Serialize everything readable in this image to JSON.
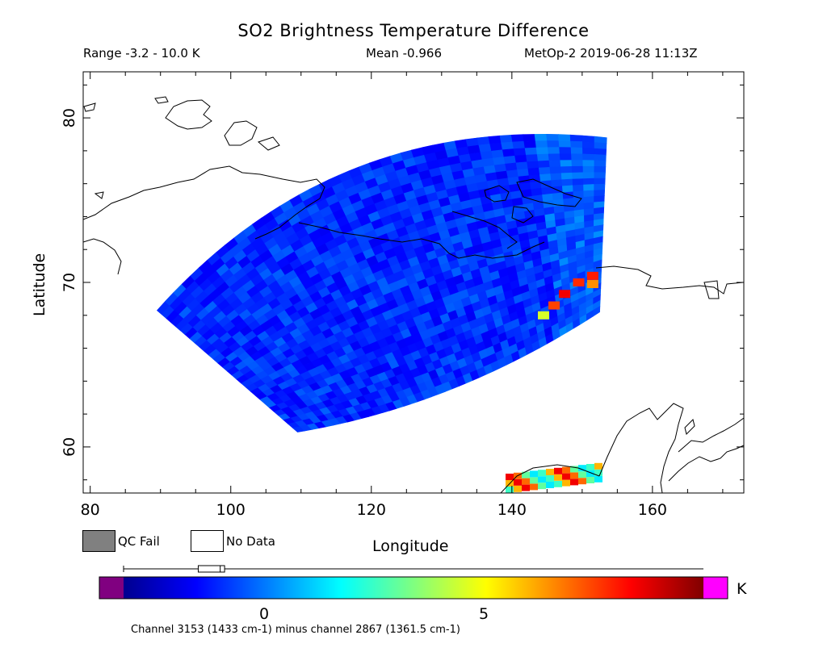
{
  "header": {
    "title": "SO2 Brightness Temperature Difference",
    "range": "Range -3.2 - 10.0 K",
    "mean": "Mean -0.966",
    "satellite": "MetOp-2 2019-06-28 11:13Z"
  },
  "axes": {
    "xlabel": "Longitude",
    "ylabel": "Latitude",
    "xlim": [
      79,
      173
    ],
    "ylim": [
      57.2,
      82.8
    ],
    "xticks": [
      80,
      100,
      120,
      140,
      160
    ],
    "yticks": [
      60,
      70,
      80
    ]
  },
  "legend": {
    "qc_fail": "QC Fail",
    "no_data": "No Data",
    "qc_color": "#808080"
  },
  "colorbar": {
    "min": -3.2,
    "max": 10.0,
    "ticks": [
      0,
      5
    ],
    "unit": "K",
    "under_color": "#800080",
    "over_color": "#ff00ff",
    "caption": "Channel 3153 (1433 cm-1) minus channel 2867 (1361.5 cm-1)",
    "boxplot": {
      "whisker_low": -3.2,
      "q1": -1.5,
      "median": -1.0,
      "q3": -0.9,
      "whisker_high": 10.0
    }
  },
  "swath": {
    "corners_lonlat": [
      [
        89.5,
        68.3
      ],
      [
        153.5,
        78.8
      ],
      [
        152.5,
        68.2
      ],
      [
        109.5,
        60.9
      ]
    ],
    "background_value": -1.0,
    "hotspots": [
      {
        "lon": 151.5,
        "lat": 70.4,
        "value": 8.0
      },
      {
        "lon": 151.5,
        "lat": 69.9,
        "value": 6.5
      },
      {
        "lon": 149.5,
        "lat": 70.0,
        "value": 7.8
      },
      {
        "lon": 147.5,
        "lat": 69.3,
        "value": 8.5
      },
      {
        "lon": 146.0,
        "lat": 68.6,
        "value": 7.5
      },
      {
        "lon": 144.5,
        "lat": 68.0,
        "value": 4.5
      }
    ]
  },
  "swath_south": {
    "note_values": [
      2.5,
      6.0,
      8.5,
      7.0,
      3.0,
      1.5
    ]
  }
}
